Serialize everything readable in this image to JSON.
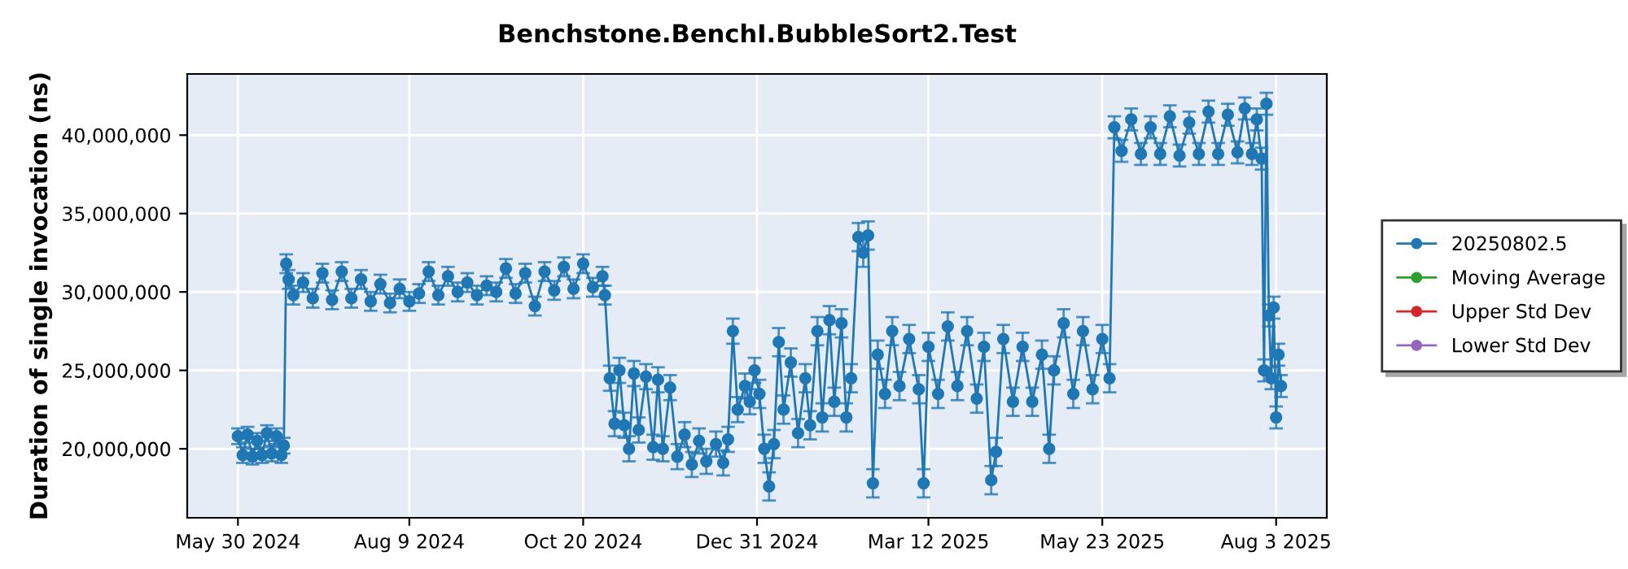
{
  "chart_data": {
    "type": "line",
    "title": "Benchstone.BenchI.BubbleSort2.Test",
    "ylabel": "Duration of single invocation (ns)",
    "xlim": [
      "2024-05-09",
      "2025-08-24"
    ],
    "ylim": [
      15600000,
      43900000
    ],
    "xticks": [
      {
        "value": "2024-05-30",
        "label": "May 30 2024"
      },
      {
        "value": "2024-08-09",
        "label": "Aug 9 2024"
      },
      {
        "value": "2024-10-20",
        "label": "Oct 20 2024"
      },
      {
        "value": "2024-12-31",
        "label": "Dec 31 2024"
      },
      {
        "value": "2025-03-12",
        "label": "Mar 12 2025"
      },
      {
        "value": "2025-05-23",
        "label": "May 23 2025"
      },
      {
        "value": "2025-08-03",
        "label": "Aug 3 2025"
      }
    ],
    "yticks": [
      {
        "value": 20000000,
        "label": "20,000,000"
      },
      {
        "value": 25000000,
        "label": "25,000,000"
      },
      {
        "value": 30000000,
        "label": "30,000,000"
      },
      {
        "value": 35000000,
        "label": "35,000,000"
      },
      {
        "value": 40000000,
        "label": "40,000,000"
      }
    ],
    "grid": true,
    "legend": "right",
    "marker": "circle",
    "line_style": "solid",
    "series": [
      {
        "name": "20250802.5",
        "color": "#1f77b4",
        "x": [
          "2024-05-30",
          "2024-06-01",
          "2024-06-03",
          "2024-06-05",
          "2024-06-07",
          "2024-06-09",
          "2024-06-11",
          "2024-06-13",
          "2024-06-15",
          "2024-06-17",
          "2024-06-18",
          "2024-06-19",
          "2024-06-20",
          "2024-06-22",
          "2024-06-26",
          "2024-06-30",
          "2024-07-04",
          "2024-07-08",
          "2024-07-12",
          "2024-07-16",
          "2024-07-20",
          "2024-07-24",
          "2024-07-28",
          "2024-08-01",
          "2024-08-05",
          "2024-08-09",
          "2024-08-13",
          "2024-08-17",
          "2024-08-21",
          "2024-08-25",
          "2024-08-29",
          "2024-09-02",
          "2024-09-06",
          "2024-09-10",
          "2024-09-14",
          "2024-09-18",
          "2024-09-22",
          "2024-09-26",
          "2024-09-30",
          "2024-10-04",
          "2024-10-08",
          "2024-10-12",
          "2024-10-16",
          "2024-10-20",
          "2024-10-24",
          "2024-10-28",
          "2024-10-29",
          "2024-10-31",
          "2024-11-02",
          "2024-11-04",
          "2024-11-06",
          "2024-11-08",
          "2024-11-10",
          "2024-11-12",
          "2024-11-15",
          "2024-11-18",
          "2024-11-20",
          "2024-11-22",
          "2024-11-25",
          "2024-11-28",
          "2024-12-01",
          "2024-12-04",
          "2024-12-07",
          "2024-12-10",
          "2024-12-14",
          "2024-12-17",
          "2024-12-19",
          "2024-12-21",
          "2024-12-23",
          "2024-12-26",
          "2024-12-28",
          "2024-12-30",
          "2025-01-01",
          "2025-01-03",
          "2025-01-05",
          "2025-01-07",
          "2025-01-09",
          "2025-01-11",
          "2025-01-14",
          "2025-01-17",
          "2025-01-20",
          "2025-01-22",
          "2025-01-25",
          "2025-01-27",
          "2025-01-30",
          "2025-02-01",
          "2025-02-04",
          "2025-02-06",
          "2025-02-08",
          "2025-02-11",
          "2025-02-13",
          "2025-02-15",
          "2025-02-17",
          "2025-02-19",
          "2025-02-22",
          "2025-02-25",
          "2025-02-28",
          "2025-03-04",
          "2025-03-08",
          "2025-03-10",
          "2025-03-12",
          "2025-03-16",
          "2025-03-20",
          "2025-03-24",
          "2025-03-28",
          "2025-04-01",
          "2025-04-04",
          "2025-04-07",
          "2025-04-09",
          "2025-04-12",
          "2025-04-16",
          "2025-04-20",
          "2025-04-24",
          "2025-04-28",
          "2025-05-01",
          "2025-05-03",
          "2025-05-07",
          "2025-05-11",
          "2025-05-15",
          "2025-05-19",
          "2025-05-23",
          "2025-05-26",
          "2025-05-28",
          "2025-05-31",
          "2025-06-04",
          "2025-06-08",
          "2025-06-12",
          "2025-06-16",
          "2025-06-20",
          "2025-06-24",
          "2025-06-28",
          "2025-07-02",
          "2025-07-06",
          "2025-07-10",
          "2025-07-14",
          "2025-07-18",
          "2025-07-21",
          "2025-07-24",
          "2025-07-26",
          "2025-07-28",
          "2025-07-29",
          "2025-07-30",
          "2025-07-31",
          "2025-08-01",
          "2025-08-02",
          "2025-08-03",
          "2025-08-04",
          "2025-08-05"
        ],
        "values": [
          20800000,
          19600000,
          20900000,
          19500000,
          20500000,
          19600000,
          21000000,
          19700000,
          20800000,
          19600000,
          20200000,
          31800000,
          30800000,
          29800000,
          30600000,
          29600000,
          31200000,
          29500000,
          31300000,
          29600000,
          30800000,
          29400000,
          30500000,
          29300000,
          30200000,
          29400000,
          29900000,
          31300000,
          29800000,
          31000000,
          30000000,
          30600000,
          29800000,
          30400000,
          30000000,
          31500000,
          29900000,
          31200000,
          29100000,
          31300000,
          30100000,
          31600000,
          30200000,
          31800000,
          30300000,
          31000000,
          29800000,
          24500000,
          21600000,
          25000000,
          21500000,
          20000000,
          24800000,
          21200000,
          24600000,
          20100000,
          24400000,
          20000000,
          23900000,
          19500000,
          20900000,
          19000000,
          20500000,
          19200000,
          20300000,
          19100000,
          20600000,
          27500000,
          22500000,
          24000000,
          23000000,
          25000000,
          23500000,
          20000000,
          17600000,
          20300000,
          26800000,
          22500000,
          25500000,
          21000000,
          24500000,
          21500000,
          27500000,
          22000000,
          28200000,
          23000000,
          28000000,
          22000000,
          24500000,
          33500000,
          32500000,
          33600000,
          17800000,
          26000000,
          23500000,
          27500000,
          24000000,
          27000000,
          23800000,
          17800000,
          26500000,
          23500000,
          27800000,
          24000000,
          27500000,
          23200000,
          26500000,
          18000000,
          19800000,
          27000000,
          23000000,
          26500000,
          23000000,
          26000000,
          20000000,
          25000000,
          28000000,
          23500000,
          27500000,
          23800000,
          27000000,
          24500000,
          40500000,
          39000000,
          41000000,
          38800000,
          40500000,
          38800000,
          41200000,
          38700000,
          40800000,
          38800000,
          41500000,
          38800000,
          41300000,
          38900000,
          41700000,
          38800000,
          41000000,
          38500000,
          25000000,
          42000000,
          28500000,
          24500000,
          29000000,
          22000000,
          26000000,
          24000000
        ],
        "errors": [
          500000,
          500000,
          500000,
          500000,
          500000,
          500000,
          500000,
          500000,
          500000,
          500000,
          500000,
          600000,
          600000,
          600000,
          600000,
          600000,
          600000,
          600000,
          600000,
          600000,
          600000,
          600000,
          600000,
          600000,
          600000,
          600000,
          600000,
          600000,
          600000,
          600000,
          600000,
          600000,
          600000,
          600000,
          600000,
          600000,
          600000,
          600000,
          600000,
          600000,
          600000,
          600000,
          600000,
          600000,
          600000,
          600000,
          600000,
          800000,
          800000,
          800000,
          800000,
          800000,
          800000,
          800000,
          800000,
          800000,
          800000,
          800000,
          800000,
          800000,
          800000,
          800000,
          800000,
          800000,
          800000,
          800000,
          800000,
          800000,
          800000,
          800000,
          800000,
          800000,
          900000,
          900000,
          900000,
          900000,
          900000,
          900000,
          900000,
          900000,
          900000,
          900000,
          900000,
          900000,
          900000,
          900000,
          900000,
          900000,
          900000,
          900000,
          900000,
          900000,
          900000,
          900000,
          900000,
          900000,
          900000,
          900000,
          900000,
          900000,
          900000,
          900000,
          900000,
          900000,
          900000,
          900000,
          900000,
          900000,
          900000,
          900000,
          900000,
          900000,
          900000,
          900000,
          900000,
          900000,
          900000,
          900000,
          900000,
          900000,
          900000,
          900000,
          700000,
          700000,
          700000,
          700000,
          700000,
          700000,
          700000,
          700000,
          700000,
          700000,
          700000,
          700000,
          700000,
          700000,
          700000,
          700000,
          700000,
          700000,
          700000,
          700000,
          700000,
          700000,
          700000,
          700000,
          700000,
          700000
        ]
      },
      {
        "name": "Moving Average",
        "color": "#2ca02c"
      },
      {
        "name": "Upper Std Dev",
        "color": "#d62728"
      },
      {
        "name": "Lower Std Dev",
        "color": "#9467bd"
      }
    ]
  }
}
